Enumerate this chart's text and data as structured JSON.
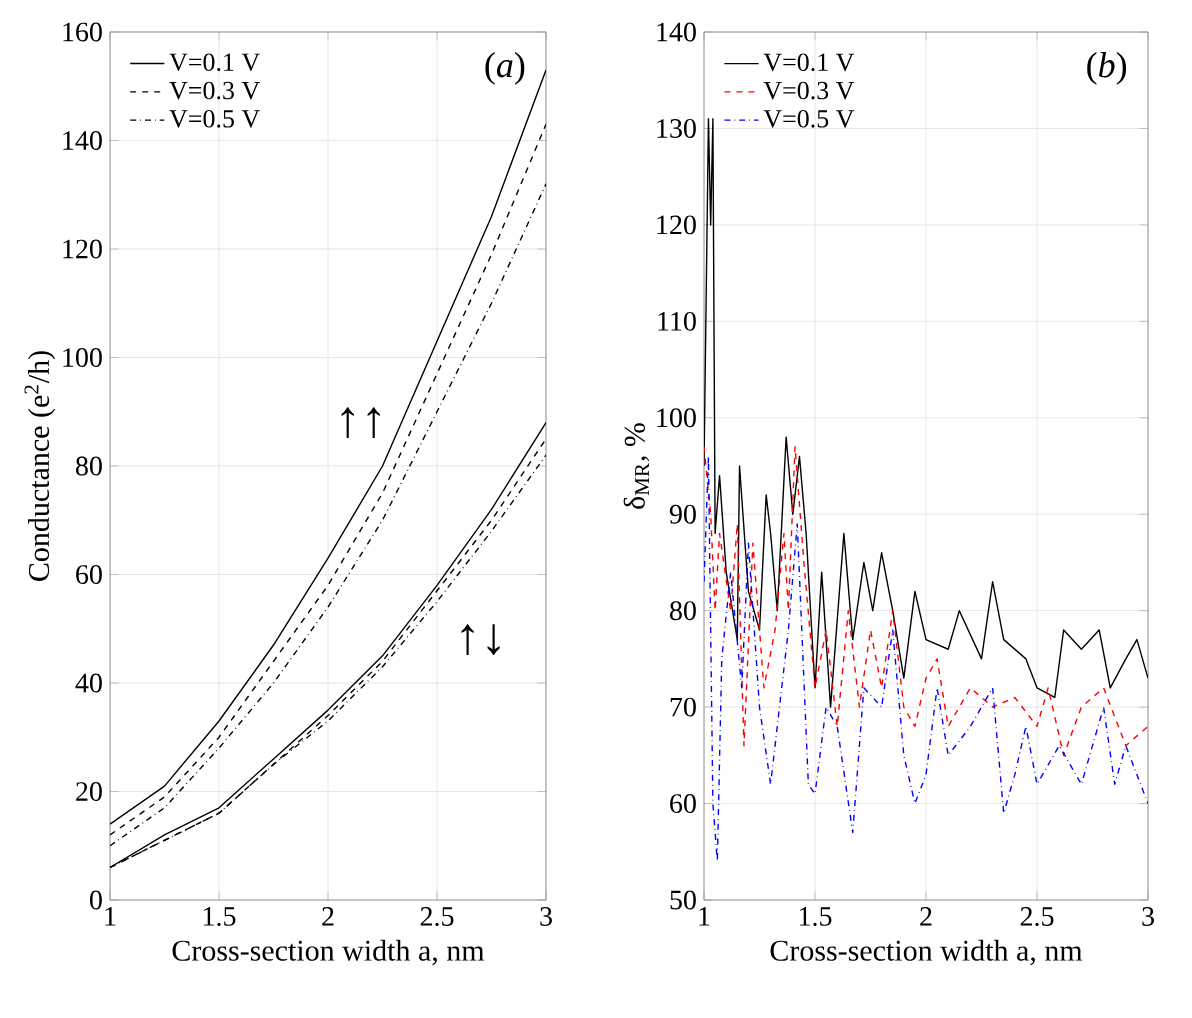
{
  "chart_data": [
    {
      "type": "line",
      "xlabel": "Cross-section width a, nm",
      "ylabel": "Conductance (e$^{2}$/h)",
      "xlim": [
        1,
        3
      ],
      "ylim": [
        0,
        160
      ],
      "xticks": [
        1,
        1.5,
        2,
        2.5,
        3
      ],
      "yticks": [
        0,
        20,
        40,
        60,
        80,
        100,
        120,
        140,
        160
      ],
      "grid": true,
      "legend": "top left",
      "annotations": [
        "(*a*)",
        "↑↑",
        "↑↓"
      ],
      "x": [
        1,
        1.25,
        1.5,
        1.75,
        2,
        2.25,
        2.5,
        2.75,
        3
      ],
      "series": [
        {
          "name": "V=0.1 V",
          "color": "#000000",
          "line_style": "solid",
          "values": [
            14,
            21,
            33,
            47,
            63,
            80,
            103,
            126,
            153
          ]
        },
        {
          "name": "V=0.3 V",
          "color": "#000000",
          "line_style": "dashed",
          "values": [
            12,
            19,
            30,
            44,
            58,
            75,
            97,
            119,
            143
          ]
        },
        {
          "name": "V=0.5 V",
          "color": "#000000",
          "line_style": "dotted",
          "values": [
            10,
            17,
            28,
            40,
            54,
            70,
            90,
            110,
            132
          ]
        },
        {
          "color": "#000000",
          "line_style": "solid",
          "values": [
            6,
            12,
            17,
            26,
            35,
            45,
            58,
            72,
            88
          ]
        },
        {
          "color": "#000000",
          "line_style": "dashed",
          "values": [
            6,
            11,
            16,
            25,
            34,
            44,
            57,
            70,
            85
          ]
        },
        {
          "color": "#000000",
          "line_style": "dotted",
          "values": [
            6,
            11,
            16,
            25,
            33,
            43,
            55,
            68,
            82
          ]
        }
      ]
    },
    {
      "type": "line",
      "xlabel": "Cross-section width a, nm",
      "ylabel": "δ$_{MR}$, %",
      "xlim": [
        1,
        3
      ],
      "ylim": [
        50,
        140
      ],
      "xticks": [
        1,
        1.5,
        2,
        2.5,
        3
      ],
      "yticks": [
        50,
        60,
        70,
        80,
        90,
        100,
        110,
        120,
        130,
        140
      ],
      "grid": true,
      "legend": "top left",
      "annotations": [
        "(*b*)"
      ],
      "series": [
        {
          "name": "V=0.1 V",
          "color": "#000000",
          "line_style": "solid",
          "x": [
            1.0,
            1.02,
            1.03,
            1.04,
            1.05,
            1.07,
            1.1,
            1.15,
            1.16,
            1.2,
            1.25,
            1.28,
            1.3,
            1.33,
            1.37,
            1.4,
            1.43,
            1.46,
            1.5,
            1.53,
            1.57,
            1.63,
            1.67,
            1.72,
            1.76,
            1.8,
            1.85,
            1.9,
            1.95,
            2.0,
            2.1,
            2.15,
            2.25,
            2.3,
            2.35,
            2.45,
            2.5,
            2.58,
            2.62,
            2.7,
            2.78,
            2.83,
            2.9,
            2.95,
            3.0
          ],
          "values": [
            95,
            131,
            120,
            131,
            88,
            94,
            84,
            77,
            95,
            82,
            78,
            92,
            88,
            80,
            98,
            90,
            96,
            88,
            72,
            84,
            70,
            88,
            77,
            85,
            80,
            86,
            80,
            73,
            82,
            77,
            76,
            80,
            75,
            83,
            77,
            75,
            72,
            71,
            78,
            76,
            78,
            72,
            75,
            77,
            73
          ]
        },
        {
          "name": "V=0.3 V",
          "color": "#ff0000",
          "line_style": "dashed",
          "x": [
            1.0,
            1.03,
            1.05,
            1.07,
            1.12,
            1.15,
            1.18,
            1.22,
            1.27,
            1.32,
            1.36,
            1.38,
            1.41,
            1.45,
            1.5,
            1.55,
            1.6,
            1.65,
            1.7,
            1.75,
            1.8,
            1.85,
            1.9,
            1.95,
            2.0,
            2.05,
            2.1,
            2.2,
            2.3,
            2.4,
            2.5,
            2.55,
            2.62,
            2.7,
            2.8,
            2.9,
            3.0
          ],
          "values": [
            97,
            90,
            80,
            88,
            80,
            89,
            66,
            87,
            72,
            78,
            88,
            80,
            97,
            85,
            72,
            78,
            68,
            80,
            70,
            78,
            72,
            80,
            70,
            68,
            73,
            75,
            68,
            72,
            70,
            71,
            68,
            72,
            65,
            70,
            72,
            66,
            68
          ]
        },
        {
          "name": "V=0.5 V",
          "color": "#0000ff",
          "line_style": "dotted",
          "x": [
            1.0,
            1.02,
            1.04,
            1.06,
            1.08,
            1.12,
            1.17,
            1.2,
            1.25,
            1.3,
            1.33,
            1.38,
            1.42,
            1.47,
            1.5,
            1.55,
            1.6,
            1.67,
            1.72,
            1.8,
            1.85,
            1.9,
            1.95,
            2.0,
            2.05,
            2.1,
            2.2,
            2.3,
            2.35,
            2.4,
            2.45,
            2.5,
            2.6,
            2.7,
            2.8,
            2.85,
            2.9,
            3.0
          ],
          "values": [
            83,
            96,
            60,
            54,
            75,
            84,
            72,
            87,
            70,
            62,
            68,
            78,
            89,
            62,
            61,
            70,
            68,
            57,
            72,
            70,
            78,
            65,
            60,
            63,
            72,
            65,
            68,
            72,
            59,
            63,
            68,
            62,
            66,
            62,
            70,
            62,
            66,
            60
          ]
        }
      ]
    }
  ]
}
